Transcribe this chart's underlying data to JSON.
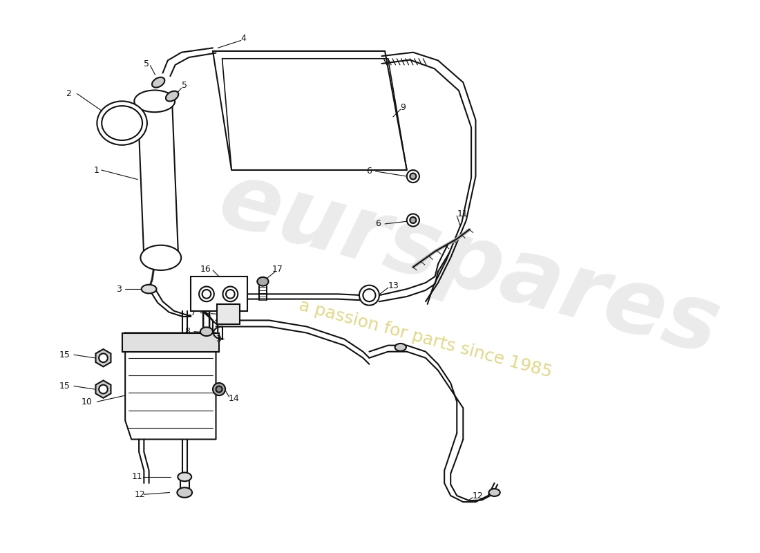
{
  "bg_color": "#ffffff",
  "lc": "#111111",
  "lw": 1.5,
  "watermark1": "eurspares",
  "watermark2": "a passion for parts since 1985"
}
